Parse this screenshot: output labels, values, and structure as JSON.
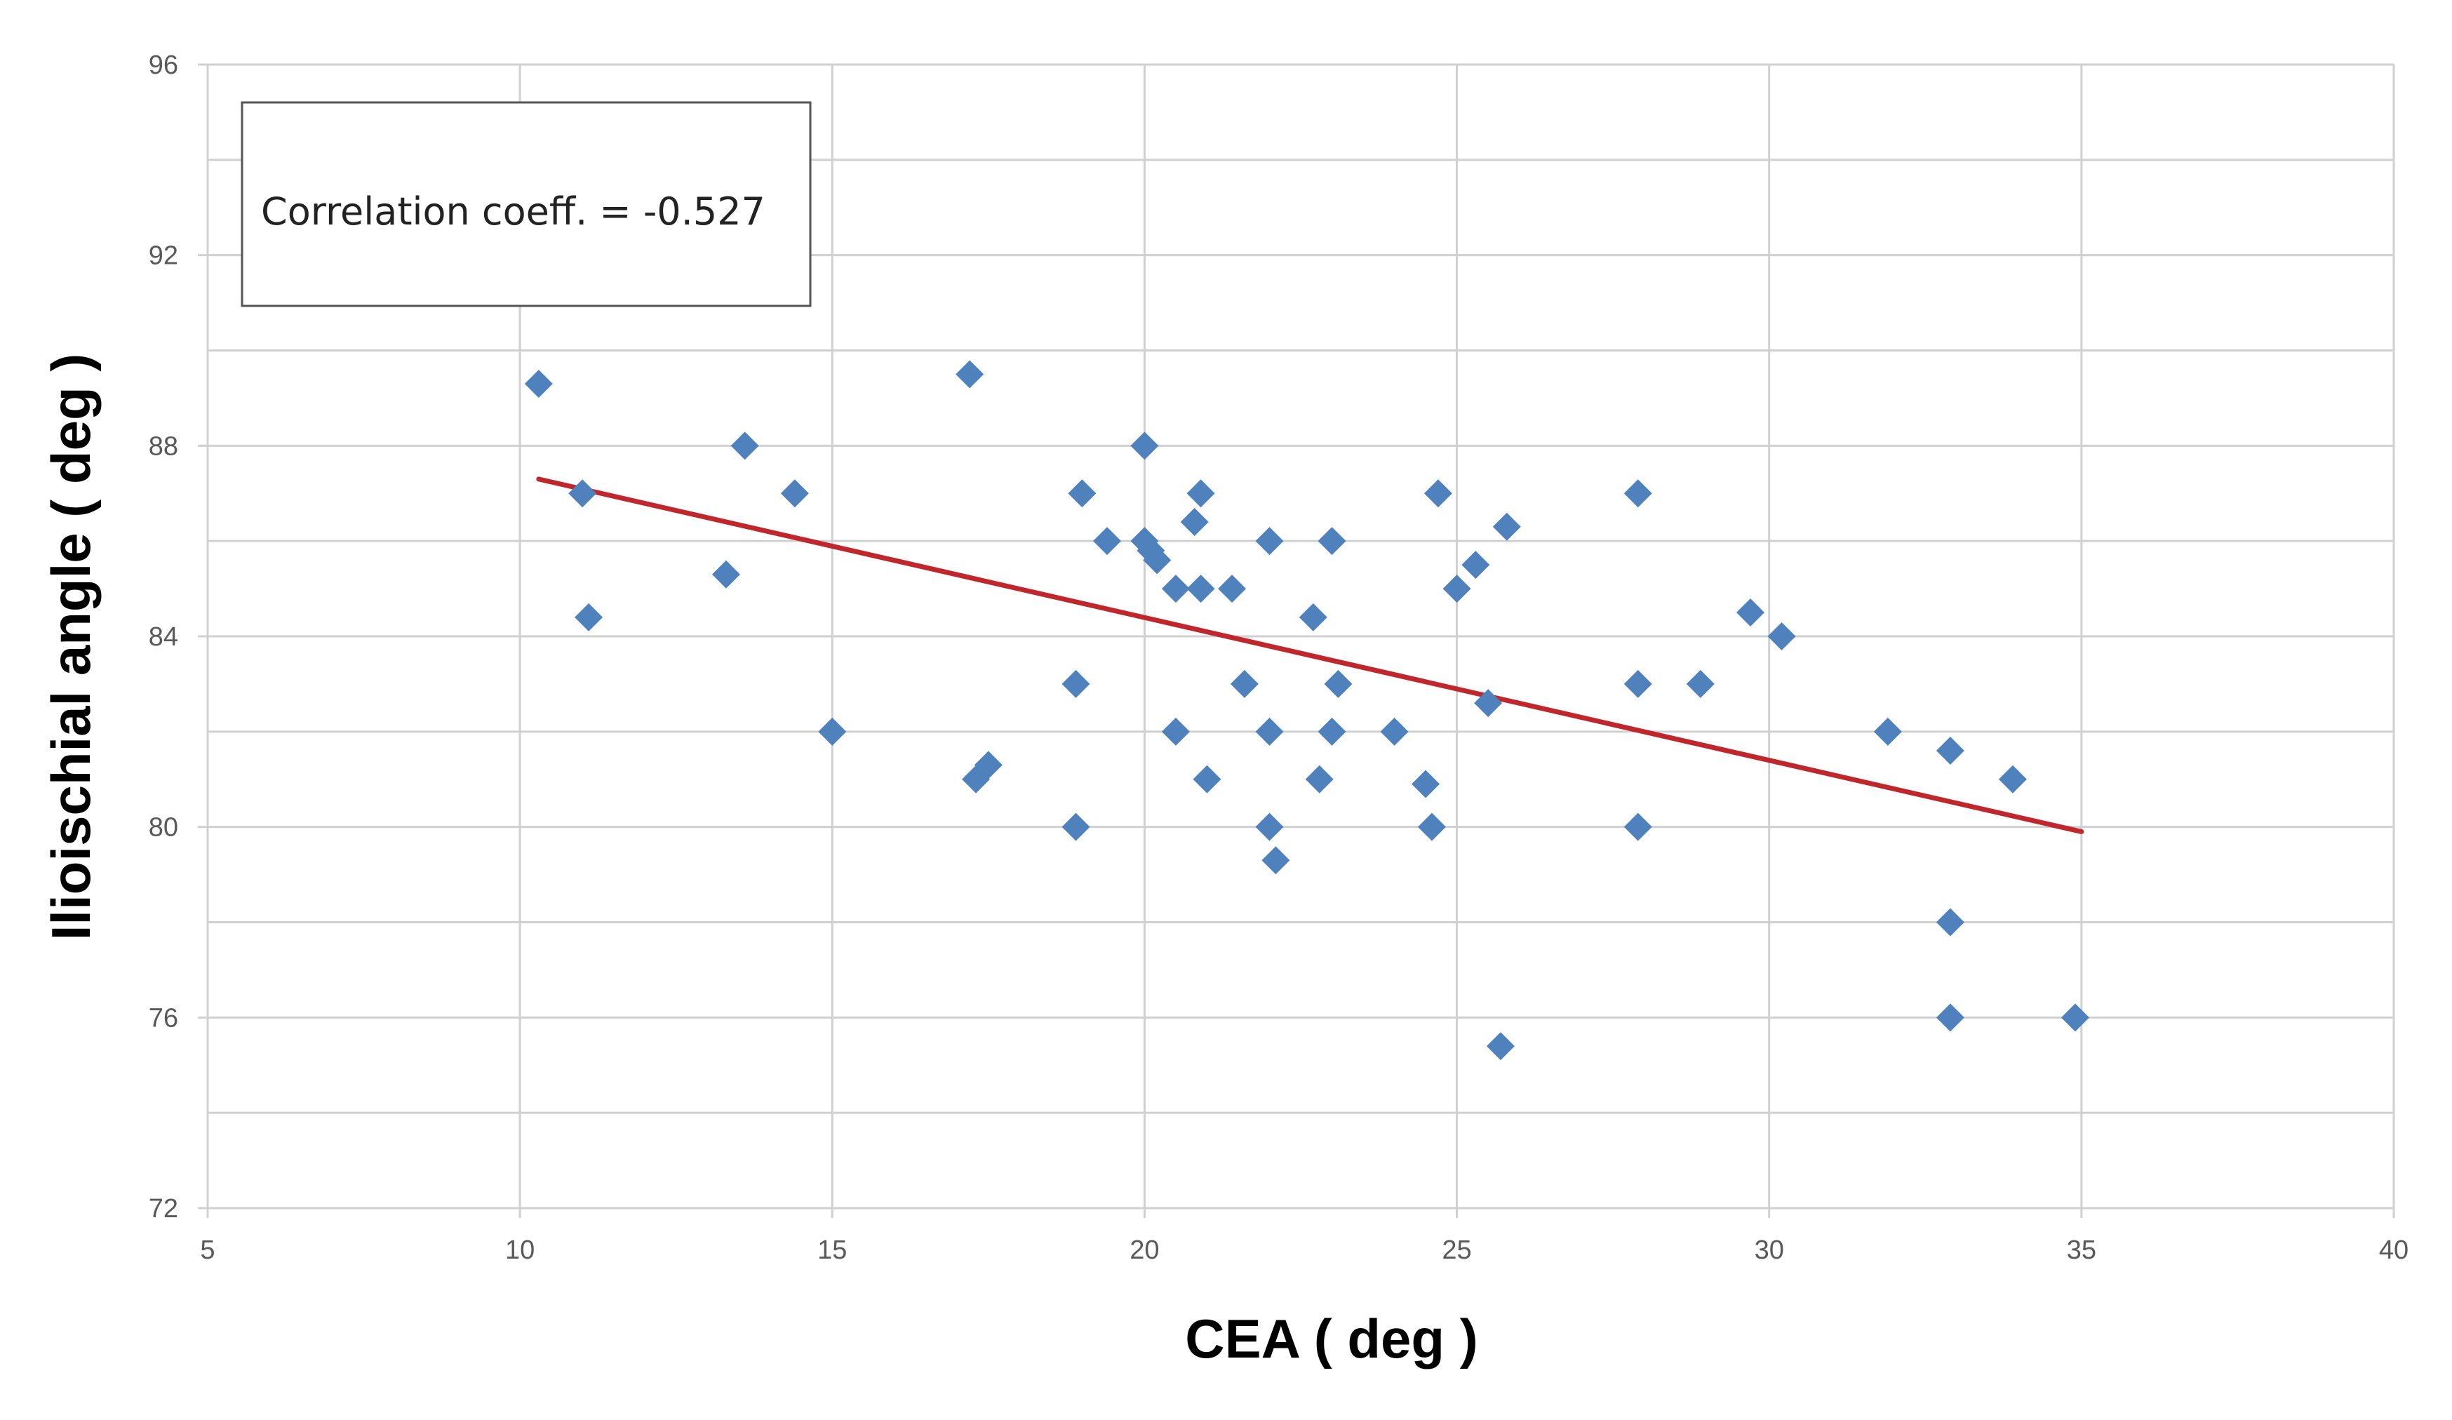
{
  "chart_data": {
    "type": "scatter",
    "title": "",
    "xlabel": "CEA ( deg )",
    "ylabel": "Ilioischial angle ( deg )",
    "xlim": [
      5,
      40
    ],
    "ylim": [
      72,
      96
    ],
    "x_ticks": [
      "5",
      "10",
      "15",
      "20",
      "25",
      "30",
      "35",
      "40"
    ],
    "y_ticks": [
      "72",
      "76",
      "80",
      "84",
      "88",
      "92",
      "96"
    ],
    "grid": true,
    "annotation": "Correlation coeff. = -0.527",
    "colors": {
      "points": "#4f81bd",
      "trendline": "#c0272d",
      "grid": "#d0d0d0"
    },
    "trendline": {
      "x": [
        10.3,
        35.0
      ],
      "y": [
        87.3,
        79.9
      ]
    },
    "series": [
      {
        "name": "data",
        "points": [
          [
            10.3,
            89.3
          ],
          [
            11.0,
            87.0
          ],
          [
            11.1,
            84.4
          ],
          [
            13.3,
            85.3
          ],
          [
            13.6,
            88.0
          ],
          [
            14.4,
            87.0
          ],
          [
            15.0,
            82.0
          ],
          [
            17.2,
            89.5
          ],
          [
            17.3,
            81.0
          ],
          [
            17.5,
            81.3
          ],
          [
            18.9,
            83.0
          ],
          [
            18.9,
            80.0
          ],
          [
            19.0,
            87.0
          ],
          [
            19.4,
            86.0
          ],
          [
            20.0,
            88.0
          ],
          [
            20.0,
            86.0
          ],
          [
            20.1,
            85.8
          ],
          [
            20.2,
            85.6
          ],
          [
            20.5,
            82.0
          ],
          [
            20.5,
            85.0
          ],
          [
            20.8,
            86.4
          ],
          [
            20.9,
            87.0
          ],
          [
            20.9,
            85.0
          ],
          [
            21.0,
            81.0
          ],
          [
            21.4,
            85.0
          ],
          [
            21.6,
            83.0
          ],
          [
            22.0,
            86.0
          ],
          [
            22.0,
            82.0
          ],
          [
            22.0,
            80.0
          ],
          [
            22.1,
            79.3
          ],
          [
            22.7,
            84.4
          ],
          [
            22.8,
            81.0
          ],
          [
            23.0,
            86.0
          ],
          [
            23.0,
            82.0
          ],
          [
            23.1,
            83.0
          ],
          [
            24.0,
            82.0
          ],
          [
            24.5,
            80.9
          ],
          [
            24.6,
            80.0
          ],
          [
            24.7,
            87.0
          ],
          [
            25.0,
            85.0
          ],
          [
            25.3,
            85.5
          ],
          [
            25.5,
            82.6
          ],
          [
            25.7,
            75.4
          ],
          [
            25.8,
            86.3
          ],
          [
            27.9,
            87.0
          ],
          [
            27.9,
            83.0
          ],
          [
            27.9,
            80.0
          ],
          [
            28.9,
            83.0
          ],
          [
            29.7,
            84.5
          ],
          [
            30.2,
            84.0
          ],
          [
            31.9,
            82.0
          ],
          [
            32.9,
            81.6
          ],
          [
            32.9,
            78.0
          ],
          [
            32.9,
            76.0
          ],
          [
            33.9,
            81.0
          ],
          [
            34.9,
            76.0
          ]
        ]
      }
    ]
  }
}
